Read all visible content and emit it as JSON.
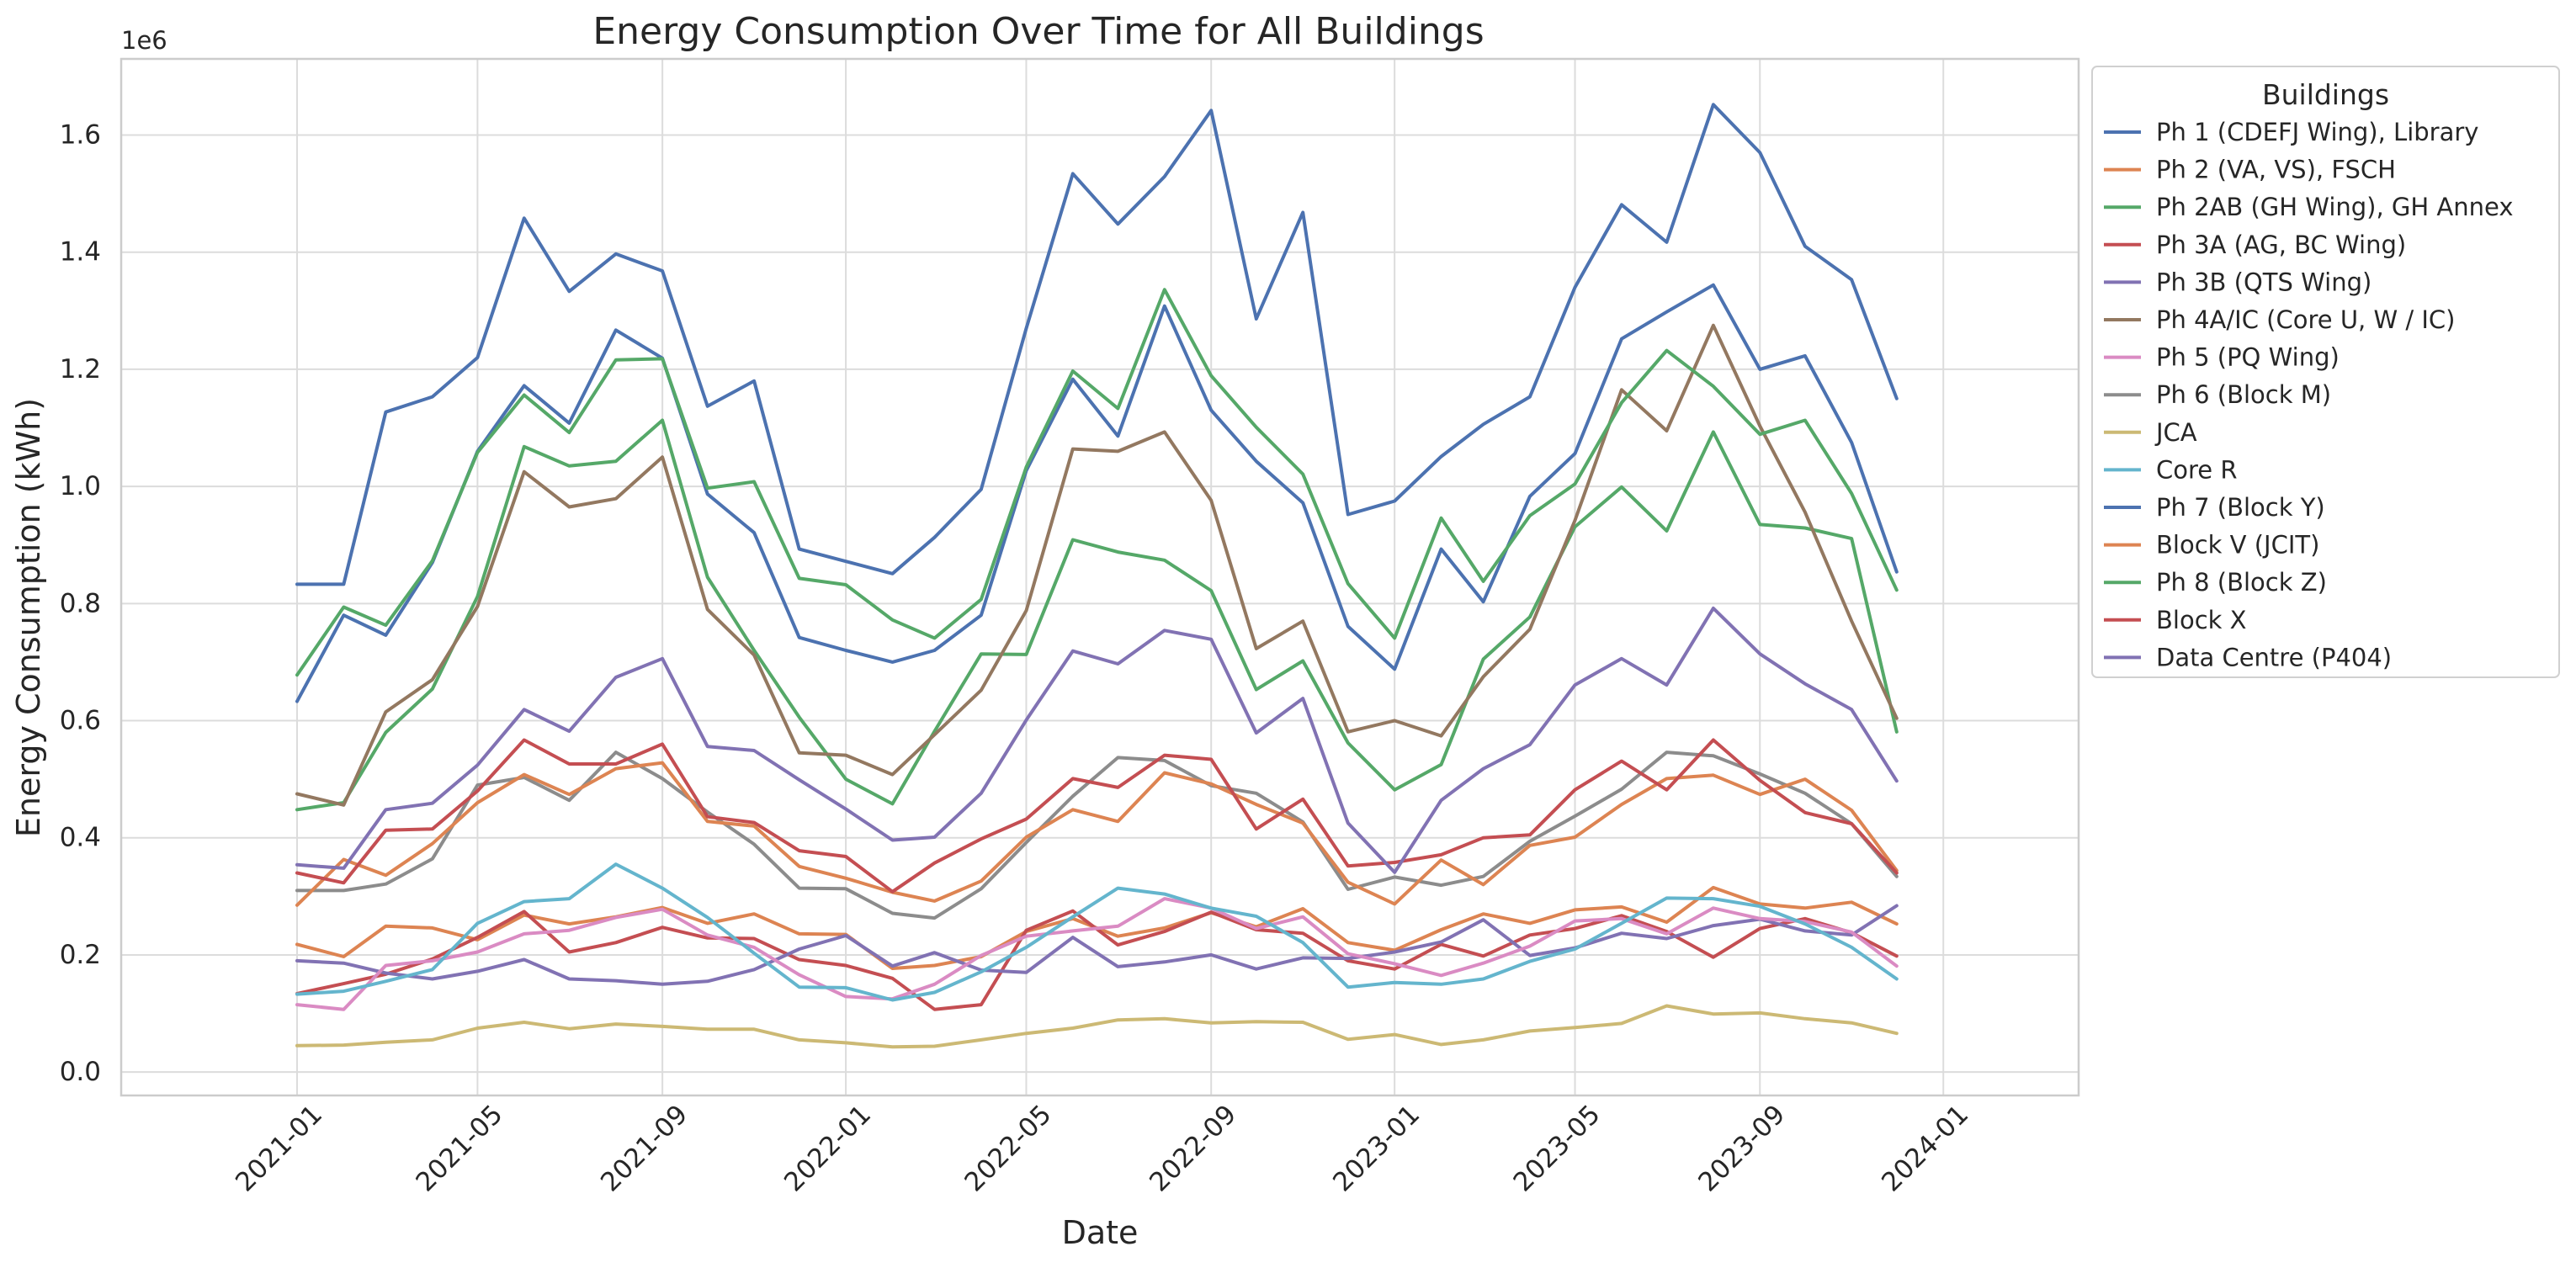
{
  "chart_data": {
    "type": "line",
    "title": "Energy Consumption Over Time for All Buildings",
    "xlabel": "Date",
    "ylabel": "Energy Consumption (kWh)",
    "y_offset_label": "1e6",
    "y_scale": 1000000,
    "ylim": [
      -0.04,
      1.73
    ],
    "xlim": [
      "2020-09-06",
      "2024-03-31"
    ],
    "grid": true,
    "legend_title": "Buildings",
    "legend_position": "outside right, top",
    "x_ticks": [
      "2021-01",
      "2021-05",
      "2021-09",
      "2022-01",
      "2022-05",
      "2022-09",
      "2023-01",
      "2023-05",
      "2023-09",
      "2024-01"
    ],
    "y_ticks": [
      "0.0",
      "0.2",
      "0.4",
      "0.6",
      "0.8",
      "1.0",
      "1.2",
      "1.4",
      "1.6"
    ],
    "x": [
      "2021-01",
      "2021-02",
      "2021-03",
      "2021-04",
      "2021-05",
      "2021-06",
      "2021-07",
      "2021-08",
      "2021-09",
      "2021-10",
      "2021-11",
      "2021-12",
      "2022-01",
      "2022-02",
      "2022-03",
      "2022-04",
      "2022-05",
      "2022-06",
      "2022-07",
      "2022-08",
      "2022-09",
      "2022-10",
      "2022-11",
      "2022-12",
      "2023-01",
      "2023-02",
      "2023-03",
      "2023-04",
      "2023-05",
      "2023-06",
      "2023-07",
      "2023-08",
      "2023-09",
      "2023-10",
      "2023-11",
      "2023-12"
    ],
    "series": [
      {
        "name": "Ph 1 (CDEFJ Wing), Library",
        "color": "#4c72b0",
        "values": [
          0.833,
          0.833,
          1.127,
          1.153,
          1.22,
          1.458,
          1.333,
          1.397,
          1.368,
          1.137,
          1.18,
          0.893,
          0.872,
          0.851,
          0.913,
          0.995,
          1.27,
          1.534,
          1.448,
          1.529,
          1.642,
          1.286,
          1.468,
          0.952,
          0.975,
          1.051,
          1.106,
          1.153,
          1.34,
          1.481,
          1.417,
          1.652,
          1.57,
          1.41,
          1.353,
          1.15
        ]
      },
      {
        "name": "Ph 2 (VA, VS), FSCH",
        "color": "#dd8452",
        "values": [
          0.218,
          0.197,
          0.249,
          0.246,
          0.226,
          0.268,
          0.253,
          0.265,
          0.281,
          0.254,
          0.27,
          0.236,
          0.235,
          0.177,
          0.182,
          0.197,
          0.24,
          0.262,
          0.232,
          0.246,
          0.272,
          0.248,
          0.279,
          0.221,
          0.208,
          0.243,
          0.27,
          0.254,
          0.277,
          0.282,
          0.256,
          0.315,
          0.287,
          0.28,
          0.29,
          0.253
        ]
      },
      {
        "name": "Ph 2AB (GH Wing), GH Annex",
        "color": "#55a868",
        "values": [
          0.448,
          0.46,
          0.58,
          0.654,
          0.812,
          1.068,
          1.035,
          1.043,
          1.113,
          0.845,
          0.72,
          0.606,
          0.5,
          0.458,
          0.582,
          0.714,
          0.713,
          0.909,
          0.888,
          0.874,
          0.822,
          0.653,
          0.702,
          0.562,
          0.482,
          0.525,
          0.705,
          0.777,
          0.931,
          0.999,
          0.924,
          1.093,
          0.935,
          0.929,
          0.911,
          0.581
        ]
      },
      {
        "name": "Ph 3A (AG, BC Wing)",
        "color": "#c44e52",
        "values": [
          0.134,
          0.151,
          0.167,
          0.193,
          0.23,
          0.274,
          0.205,
          0.221,
          0.247,
          0.229,
          0.228,
          0.192,
          0.182,
          0.16,
          0.107,
          0.115,
          0.242,
          0.275,
          0.217,
          0.24,
          0.273,
          0.243,
          0.237,
          0.19,
          0.176,
          0.218,
          0.198,
          0.234,
          0.245,
          0.267,
          0.24,
          0.196,
          0.245,
          0.262,
          0.238,
          0.198
        ]
      },
      {
        "name": "Ph 3B (QTS Wing)",
        "color": "#8172b3",
        "values": [
          0.19,
          0.186,
          0.169,
          0.159,
          0.172,
          0.192,
          0.159,
          0.156,
          0.15,
          0.155,
          0.175,
          0.21,
          0.233,
          0.181,
          0.204,
          0.174,
          0.17,
          0.23,
          0.18,
          0.188,
          0.2,
          0.176,
          0.195,
          0.194,
          0.205,
          0.222,
          0.26,
          0.199,
          0.212,
          0.237,
          0.228,
          0.25,
          0.261,
          0.241,
          0.234,
          0.284
        ]
      },
      {
        "name": "Ph 4A/IC (Core U, W / IC)",
        "color": "#937860",
        "values": [
          0.475,
          0.456,
          0.615,
          0.67,
          0.795,
          1.025,
          0.965,
          0.979,
          1.05,
          0.79,
          0.712,
          0.545,
          0.541,
          0.508,
          0.576,
          0.652,
          0.788,
          1.064,
          1.06,
          1.093,
          0.976,
          0.723,
          0.77,
          0.581,
          0.6,
          0.574,
          0.675,
          0.756,
          0.942,
          1.165,
          1.095,
          1.275,
          1.103,
          0.956,
          0.77,
          0.604
        ]
      },
      {
        "name": "Ph 5 (PQ Wing)",
        "color": "#da8bc3",
        "values": [
          0.115,
          0.107,
          0.182,
          0.19,
          0.205,
          0.236,
          0.242,
          0.264,
          0.278,
          0.234,
          0.213,
          0.166,
          0.129,
          0.125,
          0.15,
          0.199,
          0.232,
          0.241,
          0.249,
          0.296,
          0.28,
          0.245,
          0.265,
          0.202,
          0.185,
          0.165,
          0.186,
          0.215,
          0.258,
          0.262,
          0.236,
          0.28,
          0.262,
          0.257,
          0.239,
          0.181
        ]
      },
      {
        "name": "Ph 6 (Block M)",
        "color": "#8c8c8c",
        "values": [
          0.31,
          0.31,
          0.321,
          0.364,
          0.49,
          0.503,
          0.464,
          0.546,
          0.501,
          0.444,
          0.389,
          0.314,
          0.313,
          0.271,
          0.263,
          0.313,
          0.392,
          0.471,
          0.537,
          0.532,
          0.489,
          0.476,
          0.427,
          0.312,
          0.333,
          0.319,
          0.334,
          0.394,
          0.437,
          0.483,
          0.546,
          0.54,
          0.509,
          0.476,
          0.424,
          0.334
        ]
      },
      {
        "name": "JCA",
        "color": "#ccb974",
        "values": [
          0.045,
          0.046,
          0.051,
          0.055,
          0.075,
          0.085,
          0.074,
          0.082,
          0.078,
          0.073,
          0.073,
          0.055,
          0.05,
          0.043,
          0.044,
          0.055,
          0.066,
          0.075,
          0.089,
          0.091,
          0.084,
          0.086,
          0.085,
          0.056,
          0.064,
          0.047,
          0.055,
          0.07,
          0.076,
          0.083,
          0.113,
          0.099,
          0.101,
          0.091,
          0.084,
          0.066
        ]
      },
      {
        "name": "Core R",
        "color": "#64b5cd",
        "values": [
          0.133,
          0.138,
          0.155,
          0.175,
          0.254,
          0.291,
          0.296,
          0.355,
          0.314,
          0.264,
          0.203,
          0.145,
          0.144,
          0.123,
          0.136,
          0.171,
          0.213,
          0.265,
          0.314,
          0.304,
          0.28,
          0.266,
          0.221,
          0.145,
          0.153,
          0.15,
          0.159,
          0.189,
          0.21,
          0.254,
          0.297,
          0.296,
          0.283,
          0.253,
          0.213,
          0.159
        ]
      },
      {
        "name": "Ph 7 (Block Y)",
        "color": "#4c72b0",
        "values": [
          0.633,
          0.78,
          0.746,
          0.87,
          1.06,
          1.172,
          1.108,
          1.267,
          1.219,
          0.987,
          0.921,
          0.742,
          0.72,
          0.7,
          0.72,
          0.78,
          1.027,
          1.183,
          1.086,
          1.308,
          1.13,
          1.043,
          0.972,
          0.761,
          0.688,
          0.893,
          0.803,
          0.983,
          1.056,
          1.252,
          1.298,
          1.344,
          1.2,
          1.223,
          1.075,
          0.854
        ]
      },
      {
        "name": "Block V (JCIT)",
        "color": "#dd8452",
        "values": [
          0.285,
          0.363,
          0.336,
          0.39,
          0.46,
          0.508,
          0.474,
          0.518,
          0.528,
          0.428,
          0.42,
          0.351,
          0.331,
          0.307,
          0.292,
          0.326,
          0.401,
          0.448,
          0.428,
          0.511,
          0.492,
          0.457,
          0.425,
          0.324,
          0.287,
          0.362,
          0.32,
          0.387,
          0.401,
          0.457,
          0.501,
          0.507,
          0.474,
          0.5,
          0.447,
          0.344
        ]
      },
      {
        "name": "Ph 8 (Block Z)",
        "color": "#55a868",
        "values": [
          0.678,
          0.794,
          0.763,
          0.873,
          1.058,
          1.156,
          1.092,
          1.216,
          1.218,
          0.997,
          1.008,
          0.843,
          0.832,
          0.772,
          0.741,
          0.807,
          1.033,
          1.197,
          1.133,
          1.336,
          1.189,
          1.101,
          1.021,
          0.834,
          0.741,
          0.946,
          0.838,
          0.95,
          1.004,
          1.143,
          1.232,
          1.171,
          1.089,
          1.113,
          0.988,
          0.823
        ]
      },
      {
        "name": "Block X",
        "color": "#c44e52",
        "values": [
          0.34,
          0.323,
          0.413,
          0.415,
          0.48,
          0.567,
          0.526,
          0.526,
          0.56,
          0.436,
          0.426,
          0.378,
          0.368,
          0.308,
          0.357,
          0.398,
          0.432,
          0.501,
          0.486,
          0.541,
          0.534,
          0.415,
          0.466,
          0.352,
          0.358,
          0.371,
          0.4,
          0.405,
          0.482,
          0.531,
          0.482,
          0.567,
          0.498,
          0.443,
          0.424,
          0.34
        ]
      },
      {
        "name": "Data Centre (P404)",
        "color": "#8172b3",
        "values": [
          0.354,
          0.348,
          0.448,
          0.459,
          0.524,
          0.619,
          0.582,
          0.674,
          0.706,
          0.556,
          0.549,
          0.499,
          0.449,
          0.396,
          0.401,
          0.476,
          0.601,
          0.719,
          0.697,
          0.754,
          0.739,
          0.579,
          0.638,
          0.425,
          0.341,
          0.464,
          0.518,
          0.559,
          0.661,
          0.706,
          0.661,
          0.792,
          0.714,
          0.663,
          0.619,
          0.497
        ]
      }
    ]
  }
}
